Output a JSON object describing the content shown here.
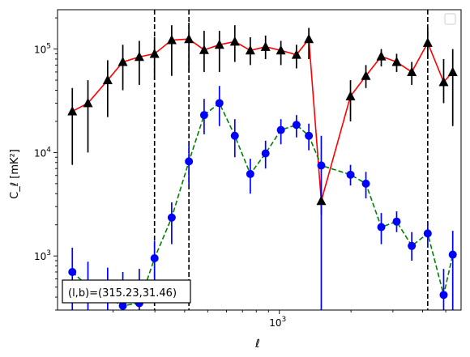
{
  "chart_data": {
    "type": "scatter",
    "title": "",
    "xlabel": "ℓ",
    "ylabel": "C_ℓ [mK²]",
    "xscale": "log",
    "yscale": "log",
    "xlim": [
      117,
      5800
    ],
    "ylim": [
      300,
      240000
    ],
    "x_tick_major": [
      {
        "value": 1000,
        "base": "10",
        "exp": "3"
      }
    ],
    "y_tick_major": [
      {
        "value": 1000,
        "base": "10",
        "exp": "3"
      },
      {
        "value": 10000,
        "base": "10",
        "exp": "4"
      },
      {
        "value": 100000,
        "base": "10",
        "exp": "5"
      }
    ],
    "legend": {
      "placement": "top-right",
      "entries": []
    },
    "annotation": "(l,b)=(315.23,31.46)",
    "vertical_lines": [
      299,
      417,
      4200
    ],
    "series": [
      {
        "color": "#000000",
        "marker": "triangle",
        "line_color": "#ff0000",
        "line_style": "solid",
        "errorbar_color": "#000000",
        "points": [
          {
            "x": 135,
            "y": 25000,
            "lo": 7600,
            "hi": 42000
          },
          {
            "x": 157,
            "y": 30000,
            "lo": 10000,
            "hi": 50000
          },
          {
            "x": 190,
            "y": 50000,
            "lo": 22000,
            "hi": 78000
          },
          {
            "x": 220,
            "y": 75000,
            "lo": 40000,
            "hi": 110000
          },
          {
            "x": 258,
            "y": 84000,
            "lo": 45000,
            "hi": 120000
          },
          {
            "x": 299,
            "y": 90000,
            "lo": 50000,
            "hi": 130000
          },
          {
            "x": 353,
            "y": 122000,
            "lo": 55000,
            "hi": 170000
          },
          {
            "x": 417,
            "y": 125000,
            "lo": 60000,
            "hi": 180000
          },
          {
            "x": 483,
            "y": 98000,
            "lo": 60000,
            "hi": 150000
          },
          {
            "x": 560,
            "y": 110000,
            "lo": 60000,
            "hi": 150000
          },
          {
            "x": 650,
            "y": 118000,
            "lo": 75000,
            "hi": 170000
          },
          {
            "x": 755,
            "y": 97000,
            "lo": 70000,
            "hi": 130000
          },
          {
            "x": 875,
            "y": 105000,
            "lo": 80000,
            "hi": 135000
          },
          {
            "x": 1015,
            "y": 97000,
            "lo": 70000,
            "hi": 120000
          },
          {
            "x": 1180,
            "y": 88000,
            "lo": 65000,
            "hi": 110000
          },
          {
            "x": 1330,
            "y": 125000,
            "lo": 80000,
            "hi": 160000
          },
          {
            "x": 1500,
            "y": 3400,
            "lo": 2500,
            "hi": 4400
          },
          {
            "x": 1990,
            "y": 35000,
            "lo": 20000,
            "hi": 50000
          },
          {
            "x": 2310,
            "y": 55000,
            "lo": 42000,
            "hi": 70000
          },
          {
            "x": 2680,
            "y": 85000,
            "lo": 68000,
            "hi": 100000
          },
          {
            "x": 3110,
            "y": 75000,
            "lo": 60000,
            "hi": 90000
          },
          {
            "x": 3600,
            "y": 60000,
            "lo": 45000,
            "hi": 75000
          },
          {
            "x": 4200,
            "y": 115000,
            "lo": 80000,
            "hi": 160000
          },
          {
            "x": 4900,
            "y": 48000,
            "lo": 30000,
            "hi": 80000
          },
          {
            "x": 5350,
            "y": 60000,
            "lo": 18000,
            "hi": 100000
          }
        ]
      },
      {
        "color": "#0000ff",
        "marker": "circle",
        "line_color": "#008000",
        "line_style": "dashed",
        "errorbar_color": "#0000ff",
        "points": [
          {
            "x": 135,
            "y": 700,
            "lo": 250,
            "hi": 1200
          },
          {
            "x": 157,
            "y": 510,
            "lo": 250,
            "hi": 880
          },
          {
            "x": 190,
            "y": 390,
            "lo": 200,
            "hi": 770
          },
          {
            "x": 220,
            "y": 330,
            "lo": 200,
            "hi": 700
          },
          {
            "x": 258,
            "y": 350,
            "lo": 200,
            "hi": 750
          },
          {
            "x": 299,
            "y": 950,
            "lo": 550,
            "hi": 1400
          },
          {
            "x": 353,
            "y": 2350,
            "lo": 1300,
            "hi": 3300
          },
          {
            "x": 417,
            "y": 8200,
            "lo": 4800,
            "hi": 12000
          },
          {
            "x": 483,
            "y": 23000,
            "lo": 15000,
            "hi": 33000
          },
          {
            "x": 560,
            "y": 30000,
            "lo": 18000,
            "hi": 44000
          },
          {
            "x": 650,
            "y": 14500,
            "lo": 9000,
            "hi": 21000
          },
          {
            "x": 755,
            "y": 6200,
            "lo": 4000,
            "hi": 8700
          },
          {
            "x": 875,
            "y": 9800,
            "lo": 7000,
            "hi": 13000
          },
          {
            "x": 1015,
            "y": 16500,
            "lo": 12000,
            "hi": 21000
          },
          {
            "x": 1180,
            "y": 18500,
            "lo": 14000,
            "hi": 23000
          },
          {
            "x": 1330,
            "y": 14500,
            "lo": 10500,
            "hi": 19000
          },
          {
            "x": 1500,
            "y": 7500,
            "lo": 200,
            "hi": 14500
          },
          {
            "x": 1990,
            "y": 6100,
            "lo": 4800,
            "hi": 7600
          },
          {
            "x": 2310,
            "y": 5000,
            "lo": 3600,
            "hi": 6500
          },
          {
            "x": 2680,
            "y": 1900,
            "lo": 1300,
            "hi": 2600
          },
          {
            "x": 3110,
            "y": 2150,
            "lo": 1700,
            "hi": 2700
          },
          {
            "x": 3600,
            "y": 1250,
            "lo": 900,
            "hi": 1700
          },
          {
            "x": 4200,
            "y": 1650,
            "lo": 1200,
            "hi": 2100
          },
          {
            "x": 4900,
            "y": 420,
            "lo": 200,
            "hi": 750
          },
          {
            "x": 5350,
            "y": 1030,
            "lo": 200,
            "hi": 1750
          }
        ]
      }
    ]
  }
}
